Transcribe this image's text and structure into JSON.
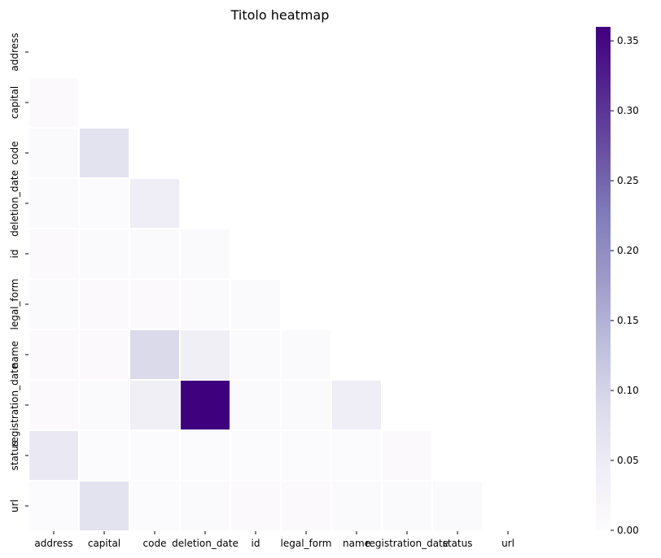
{
  "chart_data": {
    "type": "heatmap",
    "title": "Titolo heatmap",
    "xlabel": "",
    "ylabel": "",
    "x_categories": [
      "address",
      "capital",
      "code",
      "deletion_date",
      "id",
      "legal_form",
      "name",
      "registration_date",
      "status",
      "url"
    ],
    "y_categories": [
      "address",
      "capital",
      "code",
      "deletion_date",
      "id",
      "legal_form",
      "name",
      "registration_date",
      "status",
      "url"
    ],
    "mask": "upper-triangle-and-diagonal",
    "values": [
      [
        null,
        null,
        null,
        null,
        null,
        null,
        null,
        null,
        null,
        null
      ],
      [
        0.005,
        null,
        null,
        null,
        null,
        null,
        null,
        null,
        null,
        null
      ],
      [
        0.006,
        0.07,
        null,
        null,
        null,
        null,
        null,
        null,
        null,
        null
      ],
      [
        0.007,
        0.004,
        0.045,
        null,
        null,
        null,
        null,
        null,
        null,
        null
      ],
      [
        0.005,
        0.006,
        0.006,
        0.008,
        null,
        null,
        null,
        null,
        null,
        null
      ],
      [
        0.006,
        0.005,
        0.005,
        0.008,
        0.008,
        null,
        null,
        null,
        null,
        null
      ],
      [
        0.005,
        0.005,
        0.09,
        0.04,
        0.006,
        0.007,
        null,
        null,
        null,
        null
      ],
      [
        0.005,
        0.006,
        0.04,
        0.36,
        0.007,
        0.007,
        0.045,
        null,
        null,
        null
      ],
      [
        0.055,
        0.002,
        0.003,
        0.003,
        0.004,
        0.004,
        0.004,
        0.005,
        null,
        null
      ],
      [
        0.004,
        0.07,
        0.004,
        0.006,
        0.005,
        0.005,
        0.006,
        0.006,
        0.008,
        null
      ]
    ],
    "colorbar": {
      "colormap": "Purples",
      "vmin": 0.0,
      "vmax": 0.36,
      "ticks": [
        "0.00",
        "0.05",
        "0.10",
        "0.15",
        "0.20",
        "0.25",
        "0.30",
        "0.35"
      ],
      "tick_values": [
        0.0,
        0.05,
        0.1,
        0.15,
        0.2,
        0.25,
        0.3,
        0.35
      ]
    },
    "grid": false,
    "cell_separator_color": "#ffffff"
  }
}
